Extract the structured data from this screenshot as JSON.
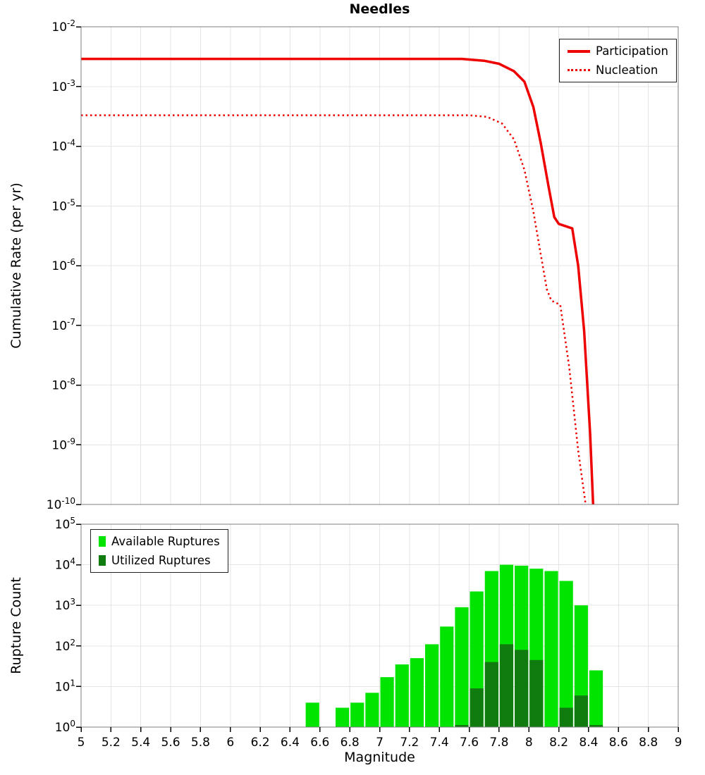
{
  "styles": {
    "grid_color": "#e4e4e4",
    "frame_color": "#7f7f7f",
    "tick_color": "#000000",
    "background": "#ffffff",
    "line_color": "#ee0000",
    "available_color": "#00e400",
    "utilized_color": "#107c10"
  },
  "chart_data": [
    {
      "type": "line",
      "title": "Needles",
      "xlabel": "",
      "ylabel": "Cumulative Rate (per yr)",
      "xlim": [
        5,
        9
      ],
      "ylim": [
        1e-10,
        0.01
      ],
      "y_scale": "log",
      "y_exponents": [
        -2,
        -3,
        -4,
        -5,
        -6,
        -7,
        -8,
        -9,
        -10
      ],
      "x_ticks": [
        5,
        5.2,
        5.4,
        5.6,
        5.8,
        6,
        6.2,
        6.4,
        6.6,
        6.8,
        7,
        7.2,
        7.4,
        7.6,
        7.8,
        8,
        8.2,
        8.4,
        8.6,
        8.8,
        9
      ],
      "x_tick_labels": [
        "5",
        "5.2",
        "5.4",
        "5.6",
        "5.8",
        "6",
        "6.2",
        "6.4",
        "6.6",
        "6.8",
        "7",
        "7.2",
        "7.4",
        "7.6",
        "7.8",
        "8",
        "8.2",
        "8.4",
        "8.6",
        "8.8",
        "9"
      ],
      "grid": true,
      "legend_position": "top-right",
      "series": [
        {
          "name": "Participation",
          "style": "solid",
          "color": "#ee0000",
          "width": 3.5,
          "points": [
            [
              5,
              0.0029
            ],
            [
              7.55,
              0.0029
            ],
            [
              7.7,
              0.0027
            ],
            [
              7.8,
              0.0024
            ],
            [
              7.9,
              0.0018
            ],
            [
              7.97,
              0.0012
            ],
            [
              8.03,
              0.00045
            ],
            [
              8.08,
              0.00011
            ],
            [
              8.13,
              2.2e-05
            ],
            [
              8.17,
              6.5e-06
            ],
            [
              8.2,
              5e-06
            ],
            [
              8.29,
              4.2e-06
            ],
            [
              8.33,
              1e-06
            ],
            [
              8.37,
              8e-08
            ],
            [
              8.41,
              1.5e-09
            ],
            [
              8.43,
              1e-10
            ]
          ]
        },
        {
          "name": "Nucleation",
          "style": "dotted",
          "color": "#ee0000",
          "width": 2.5,
          "points": [
            [
              5,
              0.00033
            ],
            [
              7.6,
              0.00033
            ],
            [
              7.72,
              0.00031
            ],
            [
              7.82,
              0.00024
            ],
            [
              7.9,
              0.00013
            ],
            [
              7.97,
              4e-05
            ],
            [
              8.03,
              8e-06
            ],
            [
              8.08,
              1.5e-06
            ],
            [
              8.12,
              4e-07
            ],
            [
              8.15,
              2.6e-07
            ],
            [
              8.21,
              2.2e-07
            ],
            [
              8.27,
              2e-08
            ],
            [
              8.33,
              8e-10
            ],
            [
              8.38,
              1e-10
            ]
          ]
        }
      ]
    },
    {
      "type": "bar",
      "title": "",
      "xlabel": "Magnitude",
      "ylabel": "Rupture Count",
      "xlim": [
        5,
        9
      ],
      "ylim": [
        1,
        100000
      ],
      "y_scale": "log",
      "y_exponents": [
        0,
        1,
        2,
        3,
        4,
        5
      ],
      "bin_width": 0.1,
      "grid": true,
      "legend_position": "top-left",
      "series": [
        {
          "name": "Available Ruptures",
          "color": "#00e400"
        },
        {
          "name": "Utilized Ruptures",
          "color": "#107c10"
        }
      ],
      "bins": [
        {
          "mag": 6.5,
          "available": 4,
          "utilized": 0
        },
        {
          "mag": 6.6,
          "available": 0,
          "utilized": 0
        },
        {
          "mag": 6.7,
          "available": 3,
          "utilized": 0
        },
        {
          "mag": 6.8,
          "available": 4,
          "utilized": 0
        },
        {
          "mag": 6.9,
          "available": 7,
          "utilized": 0
        },
        {
          "mag": 7.0,
          "available": 17,
          "utilized": 0
        },
        {
          "mag": 7.1,
          "available": 35,
          "utilized": 0
        },
        {
          "mag": 7.2,
          "available": 50,
          "utilized": 0
        },
        {
          "mag": 7.3,
          "available": 110,
          "utilized": 0
        },
        {
          "mag": 7.4,
          "available": 300,
          "utilized": 0
        },
        {
          "mag": 7.5,
          "available": 900,
          "utilized": 1
        },
        {
          "mag": 7.6,
          "available": 2200,
          "utilized": 9
        },
        {
          "mag": 7.7,
          "available": 7000,
          "utilized": 40
        },
        {
          "mag": 7.8,
          "available": 10000,
          "utilized": 110
        },
        {
          "mag": 7.9,
          "available": 9500,
          "utilized": 80
        },
        {
          "mag": 8.0,
          "available": 8000,
          "utilized": 45
        },
        {
          "mag": 8.1,
          "available": 7000,
          "utilized": 0
        },
        {
          "mag": 8.2,
          "available": 4000,
          "utilized": 3
        },
        {
          "mag": 8.3,
          "available": 1000,
          "utilized": 6
        },
        {
          "mag": 8.4,
          "available": 25,
          "utilized": 1
        }
      ]
    }
  ]
}
